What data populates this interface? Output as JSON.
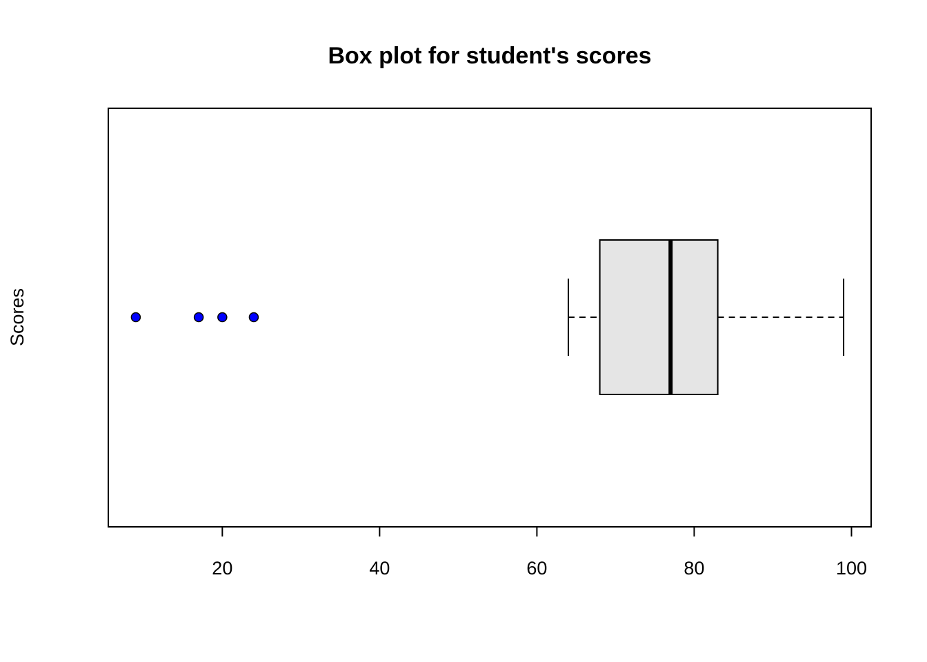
{
  "chart_data": {
    "type": "boxplot",
    "orientation": "horizontal",
    "title": "Box plot for student's scores",
    "xlabel": "",
    "ylabel": "Scores",
    "xlim": [
      5.5,
      102.5
    ],
    "ticks": [
      20,
      40,
      60,
      80,
      100
    ],
    "tick_labels": [
      "20",
      "40",
      "60",
      "80",
      "100"
    ],
    "grid": false,
    "box": {
      "whisker_low": 64,
      "q1": 68,
      "median": 77,
      "q3": 83,
      "whisker_high": 99,
      "fill": "#e5e5e5"
    },
    "outliers": [
      9,
      17,
      20,
      24
    ],
    "outlier_color": "#0000ff"
  }
}
